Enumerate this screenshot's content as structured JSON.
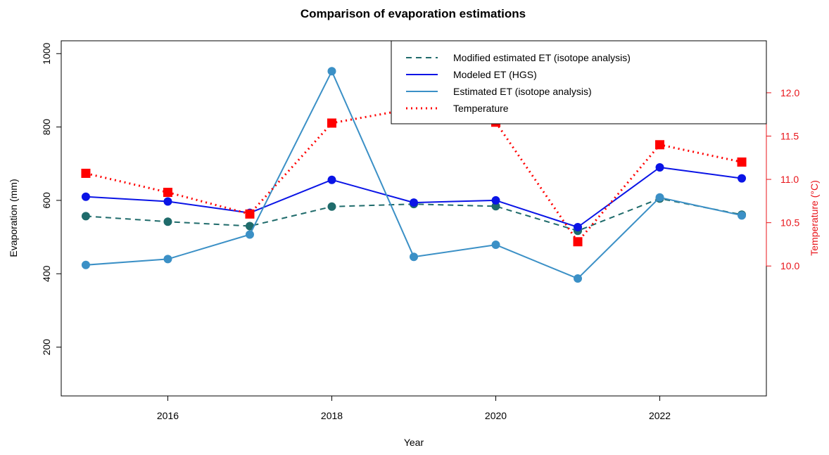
{
  "chart_data": {
    "type": "line",
    "title": "Comparison of evaporation estimations",
    "xlabel": "Year",
    "ylabel": "Evaporation (mm)",
    "y2label": "Temperature (°C)",
    "x": [
      2015,
      2016,
      2017,
      2018,
      2019,
      2020,
      2021,
      2022,
      2023
    ],
    "xlim": [
      2014.7,
      2023.3
    ],
    "ylim": [
      67,
      1035
    ],
    "y2lim": [
      8.5,
      12.6
    ],
    "xticks": [
      "2016",
      "2018",
      "2020",
      "2022"
    ],
    "yticks": [
      "200",
      "400",
      "600",
      "800",
      "1000"
    ],
    "y2ticks": [
      "10.0",
      "10.5",
      "11.0",
      "11.5",
      "12.0"
    ],
    "legend_position": "top-right",
    "grid": false,
    "series": [
      {
        "name": "Modified estimated ET (isotope analysis)",
        "axis": "left",
        "color": "#1f6b6b",
        "line_style": "dashed",
        "marker": "circle",
        "values": [
          557,
          542,
          530,
          583,
          590,
          584,
          517,
          605,
          561
        ]
      },
      {
        "name": "Modeled ET (HGS)",
        "axis": "left",
        "color": "#0a14e6",
        "line_style": "solid",
        "marker": "circle",
        "values": [
          610,
          597,
          566,
          656,
          594,
          600,
          527,
          690,
          660
        ]
      },
      {
        "name": "Estimated ET (isotope analysis)",
        "axis": "left",
        "color": "#3b90c6",
        "line_style": "solid",
        "marker": "circle",
        "values": [
          424,
          440,
          507,
          952,
          446,
          479,
          387,
          608,
          559
        ]
      },
      {
        "name": "Temperature",
        "axis": "right",
        "color": "#ff0000",
        "line_style": "dotted",
        "marker": "square",
        "values": [
          11.07,
          10.85,
          10.6,
          11.65,
          11.82,
          11.66,
          10.28,
          11.4,
          11.2
        ]
      }
    ]
  }
}
